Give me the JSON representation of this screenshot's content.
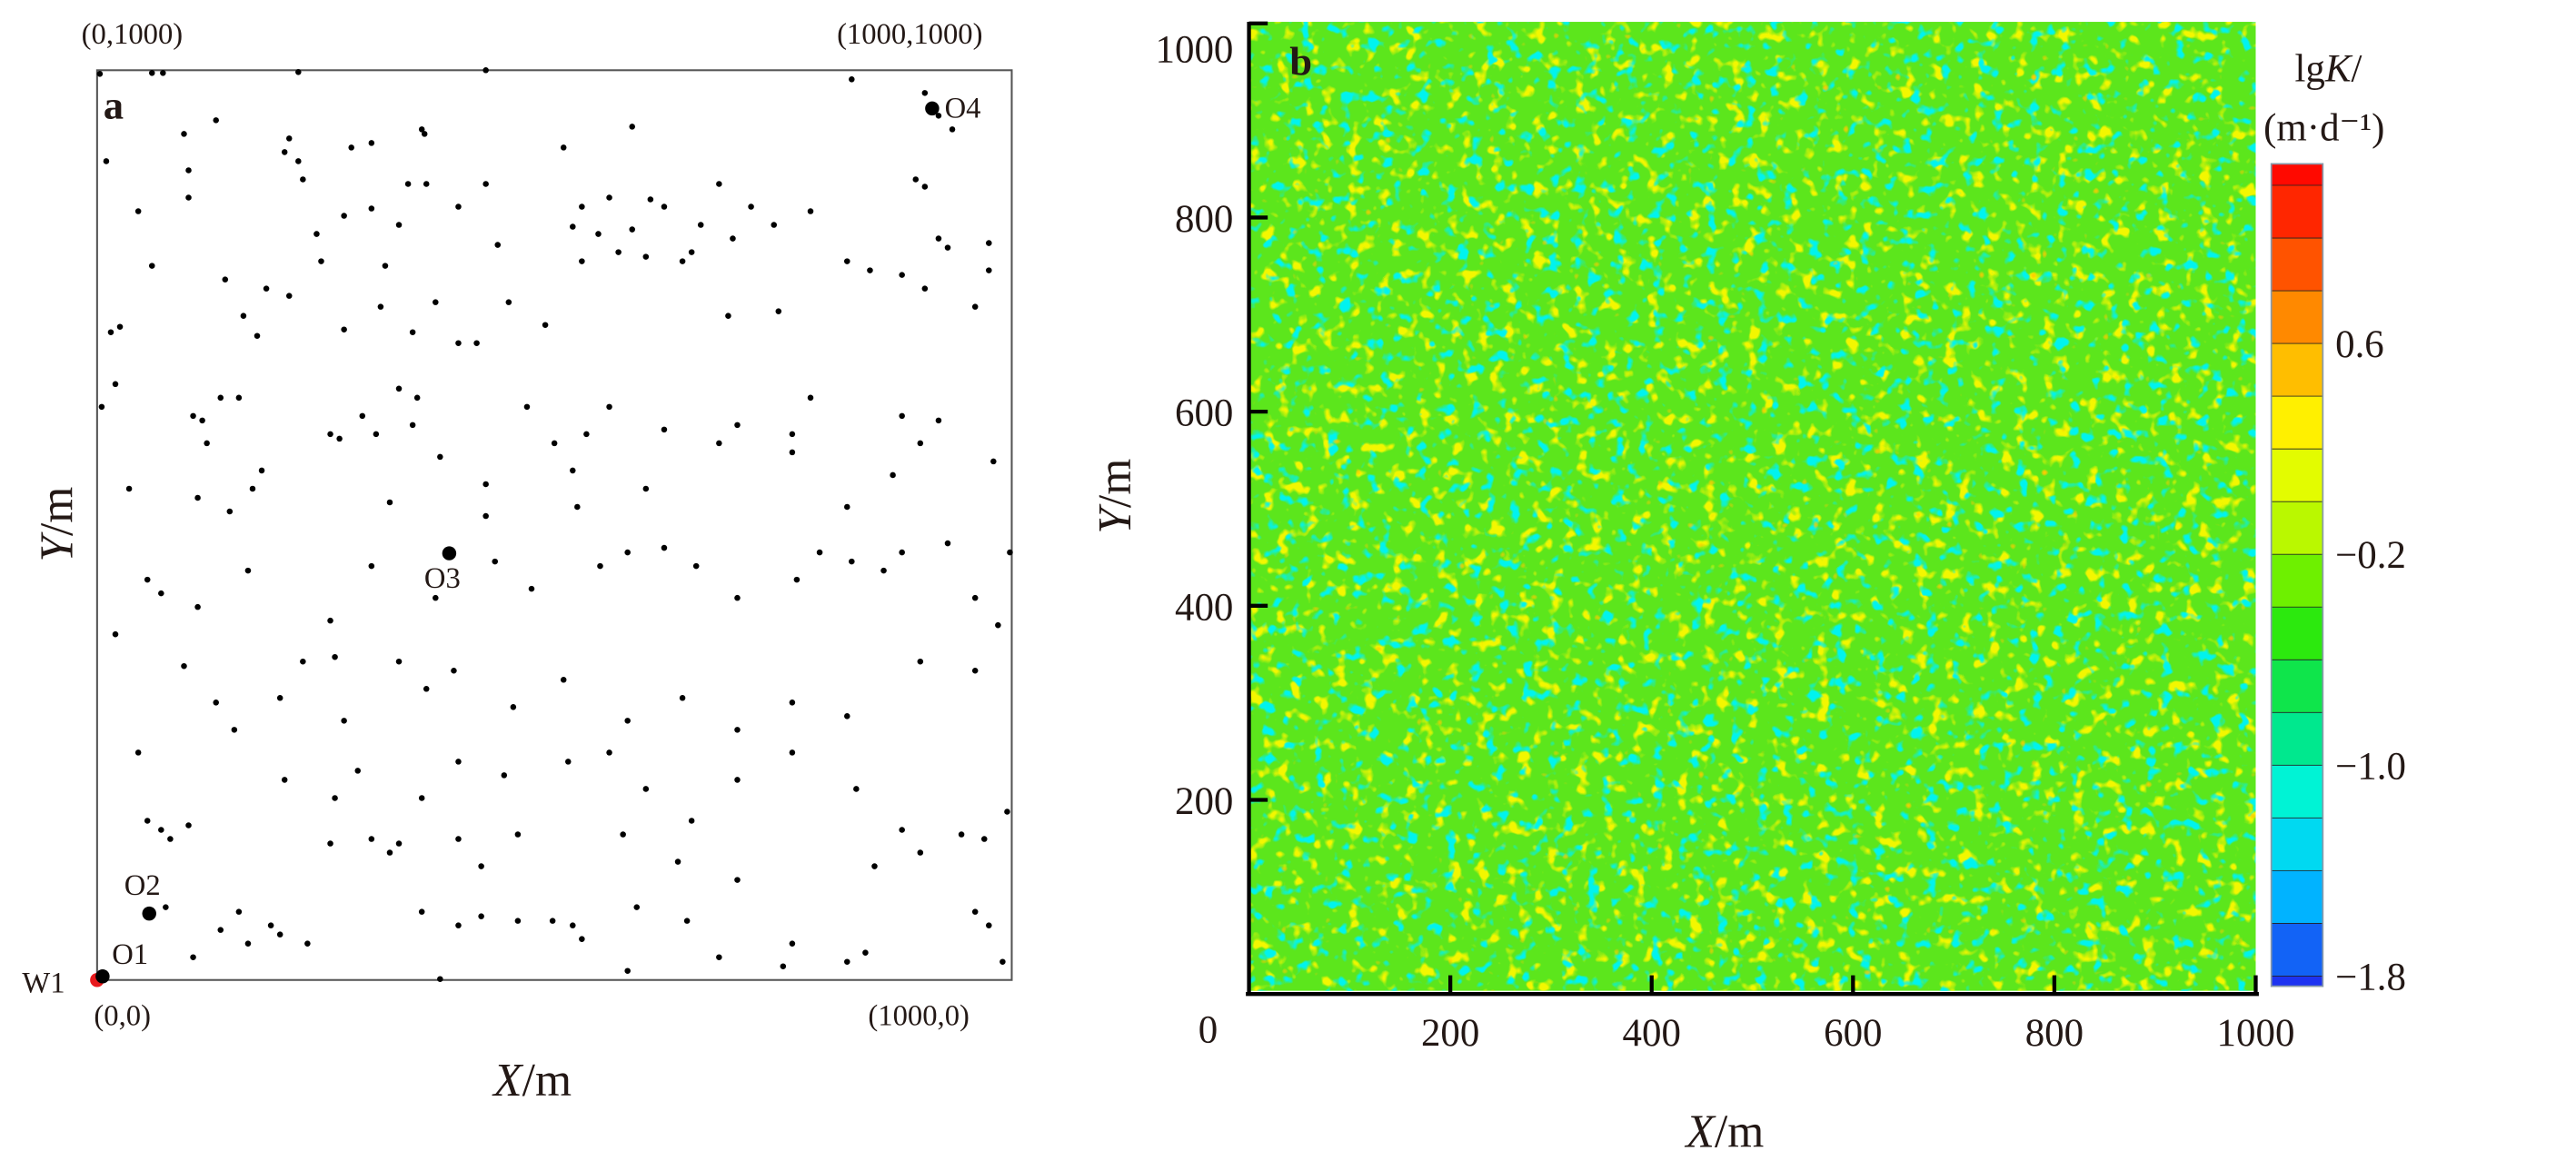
{
  "chart_data": [
    {
      "type": "scatter",
      "panel_label": "a",
      "xlabel": "X/m",
      "ylabel": "Y/m",
      "xlim": [
        0,
        1000
      ],
      "ylim": [
        0,
        1000
      ],
      "corner_labels": {
        "top_left": "(0,1000)",
        "top_right": "(1000,1000)",
        "bottom_left": "(0,0)",
        "bottom_right": "(1000,0)"
      },
      "wells": [
        {
          "name": "W1",
          "x": 0,
          "y": 0,
          "color": "#e8191c"
        },
        {
          "name": "O1",
          "x": 6,
          "y": 4,
          "color": "#000000"
        },
        {
          "name": "O2",
          "x": 57,
          "y": 73,
          "color": "#000000"
        },
        {
          "name": "O3",
          "x": 385,
          "y": 469,
          "color": "#000000"
        },
        {
          "name": "O4",
          "x": 913,
          "y": 958,
          "color": "#000000"
        }
      ],
      "points": [
        [
          3,
          996
        ],
        [
          60,
          997
        ],
        [
          72,
          997
        ],
        [
          220,
          998
        ],
        [
          425,
          1000
        ],
        [
          825,
          990
        ],
        [
          905,
          975
        ],
        [
          920,
          950
        ],
        [
          935,
          935
        ],
        [
          10,
          900
        ],
        [
          95,
          930
        ],
        [
          130,
          945
        ],
        [
          100,
          890
        ],
        [
          205,
          910
        ],
        [
          220,
          900
        ],
        [
          210,
          925
        ],
        [
          278,
          915
        ],
        [
          300,
          920
        ],
        [
          225,
          880
        ],
        [
          355,
          935
        ],
        [
          358,
          930
        ],
        [
          510,
          915
        ],
        [
          585,
          938
        ],
        [
          100,
          860
        ],
        [
          340,
          875
        ],
        [
          360,
          875
        ],
        [
          395,
          850
        ],
        [
          425,
          875
        ],
        [
          300,
          848
        ],
        [
          530,
          850
        ],
        [
          560,
          860
        ],
        [
          605,
          858
        ],
        [
          620,
          850
        ],
        [
          680,
          875
        ],
        [
          740,
          830
        ],
        [
          895,
          880
        ],
        [
          905,
          872
        ],
        [
          45,
          845
        ],
        [
          240,
          820
        ],
        [
          270,
          840
        ],
        [
          330,
          830
        ],
        [
          520,
          828
        ],
        [
          548,
          820
        ],
        [
          570,
          800
        ],
        [
          585,
          825
        ],
        [
          660,
          830
        ],
        [
          695,
          815
        ],
        [
          715,
          850
        ],
        [
          780,
          845
        ],
        [
          920,
          815
        ],
        [
          975,
          810
        ],
        [
          15,
          712
        ],
        [
          60,
          785
        ],
        [
          140,
          770
        ],
        [
          185,
          760
        ],
        [
          245,
          790
        ],
        [
          315,
          785
        ],
        [
          370,
          745
        ],
        [
          438,
          808
        ],
        [
          530,
          790
        ],
        [
          600,
          795
        ],
        [
          650,
          800
        ],
        [
          820,
          790
        ],
        [
          880,
          775
        ],
        [
          930,
          805
        ],
        [
          975,
          780
        ],
        [
          25,
          718
        ],
        [
          160,
          730
        ],
        [
          175,
          708
        ],
        [
          210,
          752
        ],
        [
          270,
          715
        ],
        [
          310,
          740
        ],
        [
          345,
          712
        ],
        [
          395,
          700
        ],
        [
          450,
          745
        ],
        [
          490,
          720
        ],
        [
          640,
          790
        ],
        [
          690,
          730
        ],
        [
          745,
          735
        ],
        [
          845,
          780
        ],
        [
          905,
          760
        ],
        [
          960,
          740
        ],
        [
          5,
          630
        ],
        [
          135,
          640
        ],
        [
          155,
          640
        ],
        [
          330,
          650
        ],
        [
          415,
          700
        ],
        [
          350,
          640
        ],
        [
          470,
          630
        ],
        [
          535,
          600
        ],
        [
          560,
          630
        ],
        [
          620,
          605
        ],
        [
          680,
          590
        ],
        [
          760,
          600
        ],
        [
          780,
          640
        ],
        [
          880,
          620
        ],
        [
          920,
          615
        ],
        [
          980,
          570
        ],
        [
          20,
          655
        ],
        [
          105,
          620
        ],
        [
          115,
          615
        ],
        [
          120,
          590
        ],
        [
          170,
          540
        ],
        [
          180,
          560
        ],
        [
          255,
          600
        ],
        [
          265,
          595
        ],
        [
          290,
          620
        ],
        [
          305,
          600
        ],
        [
          345,
          610
        ],
        [
          375,
          575
        ],
        [
          425,
          545
        ],
        [
          500,
          590
        ],
        [
          520,
          560
        ],
        [
          600,
          540
        ],
        [
          700,
          610
        ],
        [
          760,
          580
        ],
        [
          820,
          520
        ],
        [
          870,
          555
        ],
        [
          900,
          590
        ],
        [
          35,
          540
        ],
        [
          110,
          530
        ],
        [
          145,
          515
        ],
        [
          320,
          525
        ],
        [
          425,
          510
        ],
        [
          525,
          520
        ],
        [
          580,
          470
        ],
        [
          620,
          475
        ],
        [
          790,
          470
        ],
        [
          825,
          460
        ],
        [
          880,
          470
        ],
        [
          930,
          480
        ],
        [
          960,
          420
        ],
        [
          998,
          470
        ],
        [
          55,
          440
        ],
        [
          70,
          425
        ],
        [
          110,
          410
        ],
        [
          165,
          450
        ],
        [
          255,
          395
        ],
        [
          300,
          455
        ],
        [
          370,
          420
        ],
        [
          435,
          460
        ],
        [
          475,
          430
        ],
        [
          550,
          455
        ],
        [
          655,
          455
        ],
        [
          700,
          420
        ],
        [
          765,
          440
        ],
        [
          860,
          450
        ],
        [
          985,
          390
        ],
        [
          20,
          380
        ],
        [
          95,
          345
        ],
        [
          130,
          305
        ],
        [
          200,
          310
        ],
        [
          225,
          350
        ],
        [
          260,
          355
        ],
        [
          270,
          285
        ],
        [
          330,
          350
        ],
        [
          360,
          320
        ],
        [
          390,
          340
        ],
        [
          455,
          300
        ],
        [
          510,
          330
        ],
        [
          580,
          285
        ],
        [
          640,
          310
        ],
        [
          700,
          275
        ],
        [
          760,
          305
        ],
        [
          820,
          290
        ],
        [
          900,
          350
        ],
        [
          960,
          340
        ],
        [
          45,
          250
        ],
        [
          70,
          165
        ],
        [
          100,
          170
        ],
        [
          150,
          275
        ],
        [
          205,
          220
        ],
        [
          260,
          200
        ],
        [
          285,
          230
        ],
        [
          355,
          200
        ],
        [
          395,
          240
        ],
        [
          445,
          225
        ],
        [
          515,
          240
        ],
        [
          560,
          250
        ],
        [
          600,
          210
        ],
        [
          650,
          175
        ],
        [
          700,
          220
        ],
        [
          760,
          250
        ],
        [
          830,
          210
        ],
        [
          880,
          165
        ],
        [
          945,
          160
        ],
        [
          995,
          185
        ],
        [
          55,
          175
        ],
        [
          80,
          155
        ],
        [
          255,
          150
        ],
        [
          300,
          155
        ],
        [
          320,
          140
        ],
        [
          330,
          150
        ],
        [
          395,
          155
        ],
        [
          420,
          125
        ],
        [
          460,
          160
        ],
        [
          575,
          160
        ],
        [
          635,
          130
        ],
        [
          700,
          110
        ],
        [
          850,
          125
        ],
        [
          900,
          140
        ],
        [
          970,
          155
        ],
        [
          75,
          80
        ],
        [
          135,
          55
        ],
        [
          155,
          75
        ],
        [
          165,
          40
        ],
        [
          190,
          60
        ],
        [
          200,
          50
        ],
        [
          230,
          40
        ],
        [
          355,
          75
        ],
        [
          395,
          60
        ],
        [
          420,
          70
        ],
        [
          460,
          65
        ],
        [
          498,
          65
        ],
        [
          520,
          60
        ],
        [
          530,
          45
        ],
        [
          590,
          80
        ],
        [
          645,
          65
        ],
        [
          760,
          40
        ],
        [
          820,
          20
        ],
        [
          960,
          75
        ],
        [
          975,
          60
        ],
        [
          105,
          25
        ],
        [
          375,
          1
        ],
        [
          580,
          10
        ],
        [
          680,
          25
        ],
        [
          750,
          15
        ],
        [
          840,
          30
        ],
        [
          990,
          20
        ]
      ]
    },
    {
      "type": "heatmap",
      "panel_label": "b",
      "xlabel": "X/m",
      "ylabel": "Y/m",
      "xlim": [
        0,
        1000
      ],
      "ylim": [
        0,
        1000
      ],
      "xticks": [
        "200",
        "400",
        "600",
        "800",
        "1000"
      ],
      "yticks": [
        "0",
        "200",
        "400",
        "600",
        "800",
        "1000"
      ],
      "description_values": {
        "dominant_range": [
          -0.6,
          0.4
        ]
      },
      "colorbar": {
        "title_line1": "lgK/",
        "title_line2": "(m·d⁻¹)",
        "range": [
          -1.84,
          1.28
        ],
        "level_step": 0.2,
        "ticks": [
          "0.6",
          "−0.2",
          "−1.0",
          "−1.8"
        ],
        "tick_values": [
          0.6,
          -0.2,
          -1.0,
          -1.8
        ],
        "colors": [
          "#1f2bf0",
          "#00b6ff",
          "#00f5e6",
          "#00e36a",
          "#33ea00",
          "#b9f800",
          "#ffff00",
          "#ffa800",
          "#ff4a00",
          "#ff0000"
        ]
      }
    }
  ]
}
